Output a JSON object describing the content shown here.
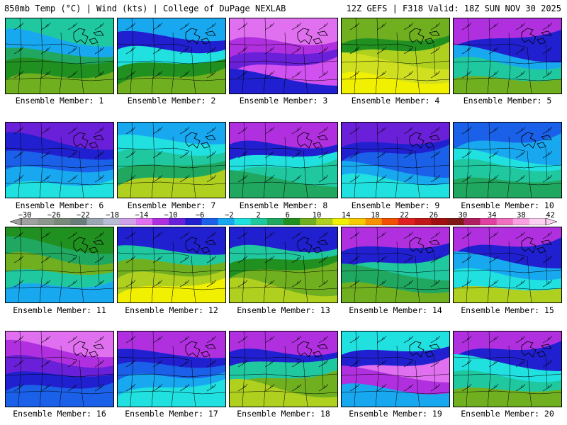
{
  "header": {
    "title_left": "850mb Temp (°C) | Wind (kts) | College of DuPage NEXLAB",
    "title_right": "12Z GEFS | F318 Valid: 18Z SUN NOV 30 2025"
  },
  "legend": {
    "tick_labels": [
      "−30",
      "−26",
      "−22",
      "−18",
      "−14",
      "−10",
      "−6",
      "−2",
      "2",
      "6",
      "10",
      "14",
      "18",
      "22",
      "26",
      "30",
      "34",
      "38",
      "42"
    ],
    "colors": [
      "#a0a0a0",
      "#8c968c",
      "#7a8a7a",
      "#6a7c78",
      "#9aa6b2",
      "#b8bcd4",
      "#d0a0e8",
      "#e070f0",
      "#b030e0",
      "#6a20d8",
      "#2020d0",
      "#1a60e8",
      "#18a8f0",
      "#20e0e0",
      "#20c8a0",
      "#20a860",
      "#209020",
      "#70b020",
      "#b0d020",
      "#f0f000",
      "#f8c800",
      "#f89000",
      "#f05000",
      "#e02020",
      "#c01818",
      "#a01010",
      "#801818",
      "#b02060",
      "#e040a0",
      "#f070c0",
      "#f8a0e0",
      "#fcd0f0"
    ]
  },
  "panels": [
    {
      "label": "Ensemble Member: 1",
      "palette": [
        "#20c8a0",
        "#18a8f0",
        "#20a860",
        "#209020",
        "#70b020"
      ]
    },
    {
      "label": "Ensemble Member: 2",
      "palette": [
        "#18a8f0",
        "#2020d0",
        "#20e0e0",
        "#209020",
        "#70b020"
      ]
    },
    {
      "label": "Ensemble Member: 3",
      "palette": [
        "#e070f0",
        "#b030e0",
        "#6a20d8",
        "#d050f0",
        "#2020d0"
      ]
    },
    {
      "label": "Ensemble Member: 4",
      "palette": [
        "#70b020",
        "#209020",
        "#b0d020",
        "#d0e020",
        "#f0f000"
      ]
    },
    {
      "label": "Ensemble Member: 5",
      "palette": [
        "#b030e0",
        "#2020d0",
        "#18a8f0",
        "#20c8a0",
        "#70b020"
      ]
    },
    {
      "label": "Ensemble Member: 6",
      "palette": [
        "#6a20d8",
        "#2020d0",
        "#1a60e8",
        "#18a8f0",
        "#20e0e0"
      ]
    },
    {
      "label": "Ensemble Member: 7",
      "palette": [
        "#18a8f0",
        "#20e0e0",
        "#20c8a0",
        "#20a860",
        "#b0d020"
      ]
    },
    {
      "label": "Ensemble Member: 8",
      "palette": [
        "#b030e0",
        "#2020d0",
        "#20e0e0",
        "#20c8a0",
        "#20a860"
      ]
    },
    {
      "label": "Ensemble Member: 9",
      "palette": [
        "#6a20d8",
        "#2020d0",
        "#1a60e8",
        "#18a8f0",
        "#20e0e0"
      ]
    },
    {
      "label": "Ensemble Member: 10",
      "palette": [
        "#1a60e8",
        "#18a8f0",
        "#20e0e0",
        "#20c8a0",
        "#20a860"
      ]
    },
    {
      "label": "Ensemble Member: 11",
      "palette": [
        "#209020",
        "#20a860",
        "#70b020",
        "#20c8a0",
        "#18a8f0"
      ]
    },
    {
      "label": "Ensemble Member: 12",
      "palette": [
        "#2020d0",
        "#20c8a0",
        "#70b020",
        "#b0d020",
        "#f0f000"
      ]
    },
    {
      "label": "Ensemble Member: 13",
      "palette": [
        "#2020d0",
        "#20c8a0",
        "#209020",
        "#70b020",
        "#b0d020"
      ]
    },
    {
      "label": "Ensemble Member: 14",
      "palette": [
        "#b030e0",
        "#2020d0",
        "#20c8a0",
        "#20a860",
        "#70b020"
      ]
    },
    {
      "label": "Ensemble Member: 15",
      "palette": [
        "#b030e0",
        "#2020d0",
        "#18a8f0",
        "#20e0e0",
        "#b0d020"
      ]
    },
    {
      "label": "Ensemble Member: 16",
      "palette": [
        "#e070f0",
        "#b030e0",
        "#6a20d8",
        "#2020d0",
        "#1a60e8"
      ]
    },
    {
      "label": "Ensemble Member: 17",
      "palette": [
        "#b030e0",
        "#2020d0",
        "#1a60e8",
        "#18a8f0",
        "#20e0e0"
      ]
    },
    {
      "label": "Ensemble Member: 18",
      "palette": [
        "#b030e0",
        "#2020d0",
        "#20c8a0",
        "#70b020",
        "#b0d020"
      ]
    },
    {
      "label": "Ensemble Member: 19",
      "palette": [
        "#20e0e0",
        "#2020d0",
        "#e070f0",
        "#b030e0",
        "#18a8f0"
      ]
    },
    {
      "label": "Ensemble Member: 20",
      "palette": [
        "#b030e0",
        "#2020d0",
        "#20e0e0",
        "#20c8a0",
        "#70b020"
      ]
    }
  ]
}
